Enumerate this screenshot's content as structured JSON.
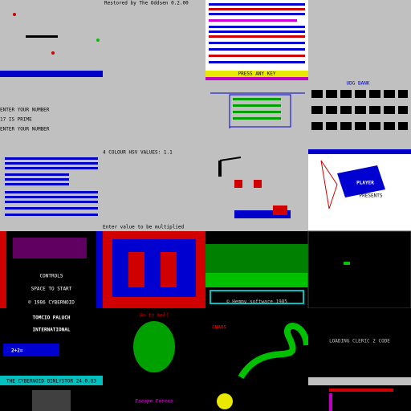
{
  "texts": [
    "Restored by The Oddsen 0.2.00",
    "PRESS ANY KEY",
    "UDG BANK",
    "ENTER YOUR NUMBER",
    "17 IS PRIME",
    "ENTER YOUR NUMBER",
    "4 COLOUR HSV VALUES: 1.1",
    "Enter value to be multiplied",
    "CONTROLS",
    "SPACE TO START",
    "© 1986 CYBERNOID",
    "TOMCIO PALUCH",
    "INTERNATIONAL",
    "2+2=",
    "THE CYBERNOID BINLYSTOR 24.0.83",
    "Go to hell",
    "CHAOS",
    "LOADING CLERIC 2 CODE",
    "PLAYER",
    "PRESENTS",
    "© Hemmy software 1985",
    "Escape Forces"
  ]
}
